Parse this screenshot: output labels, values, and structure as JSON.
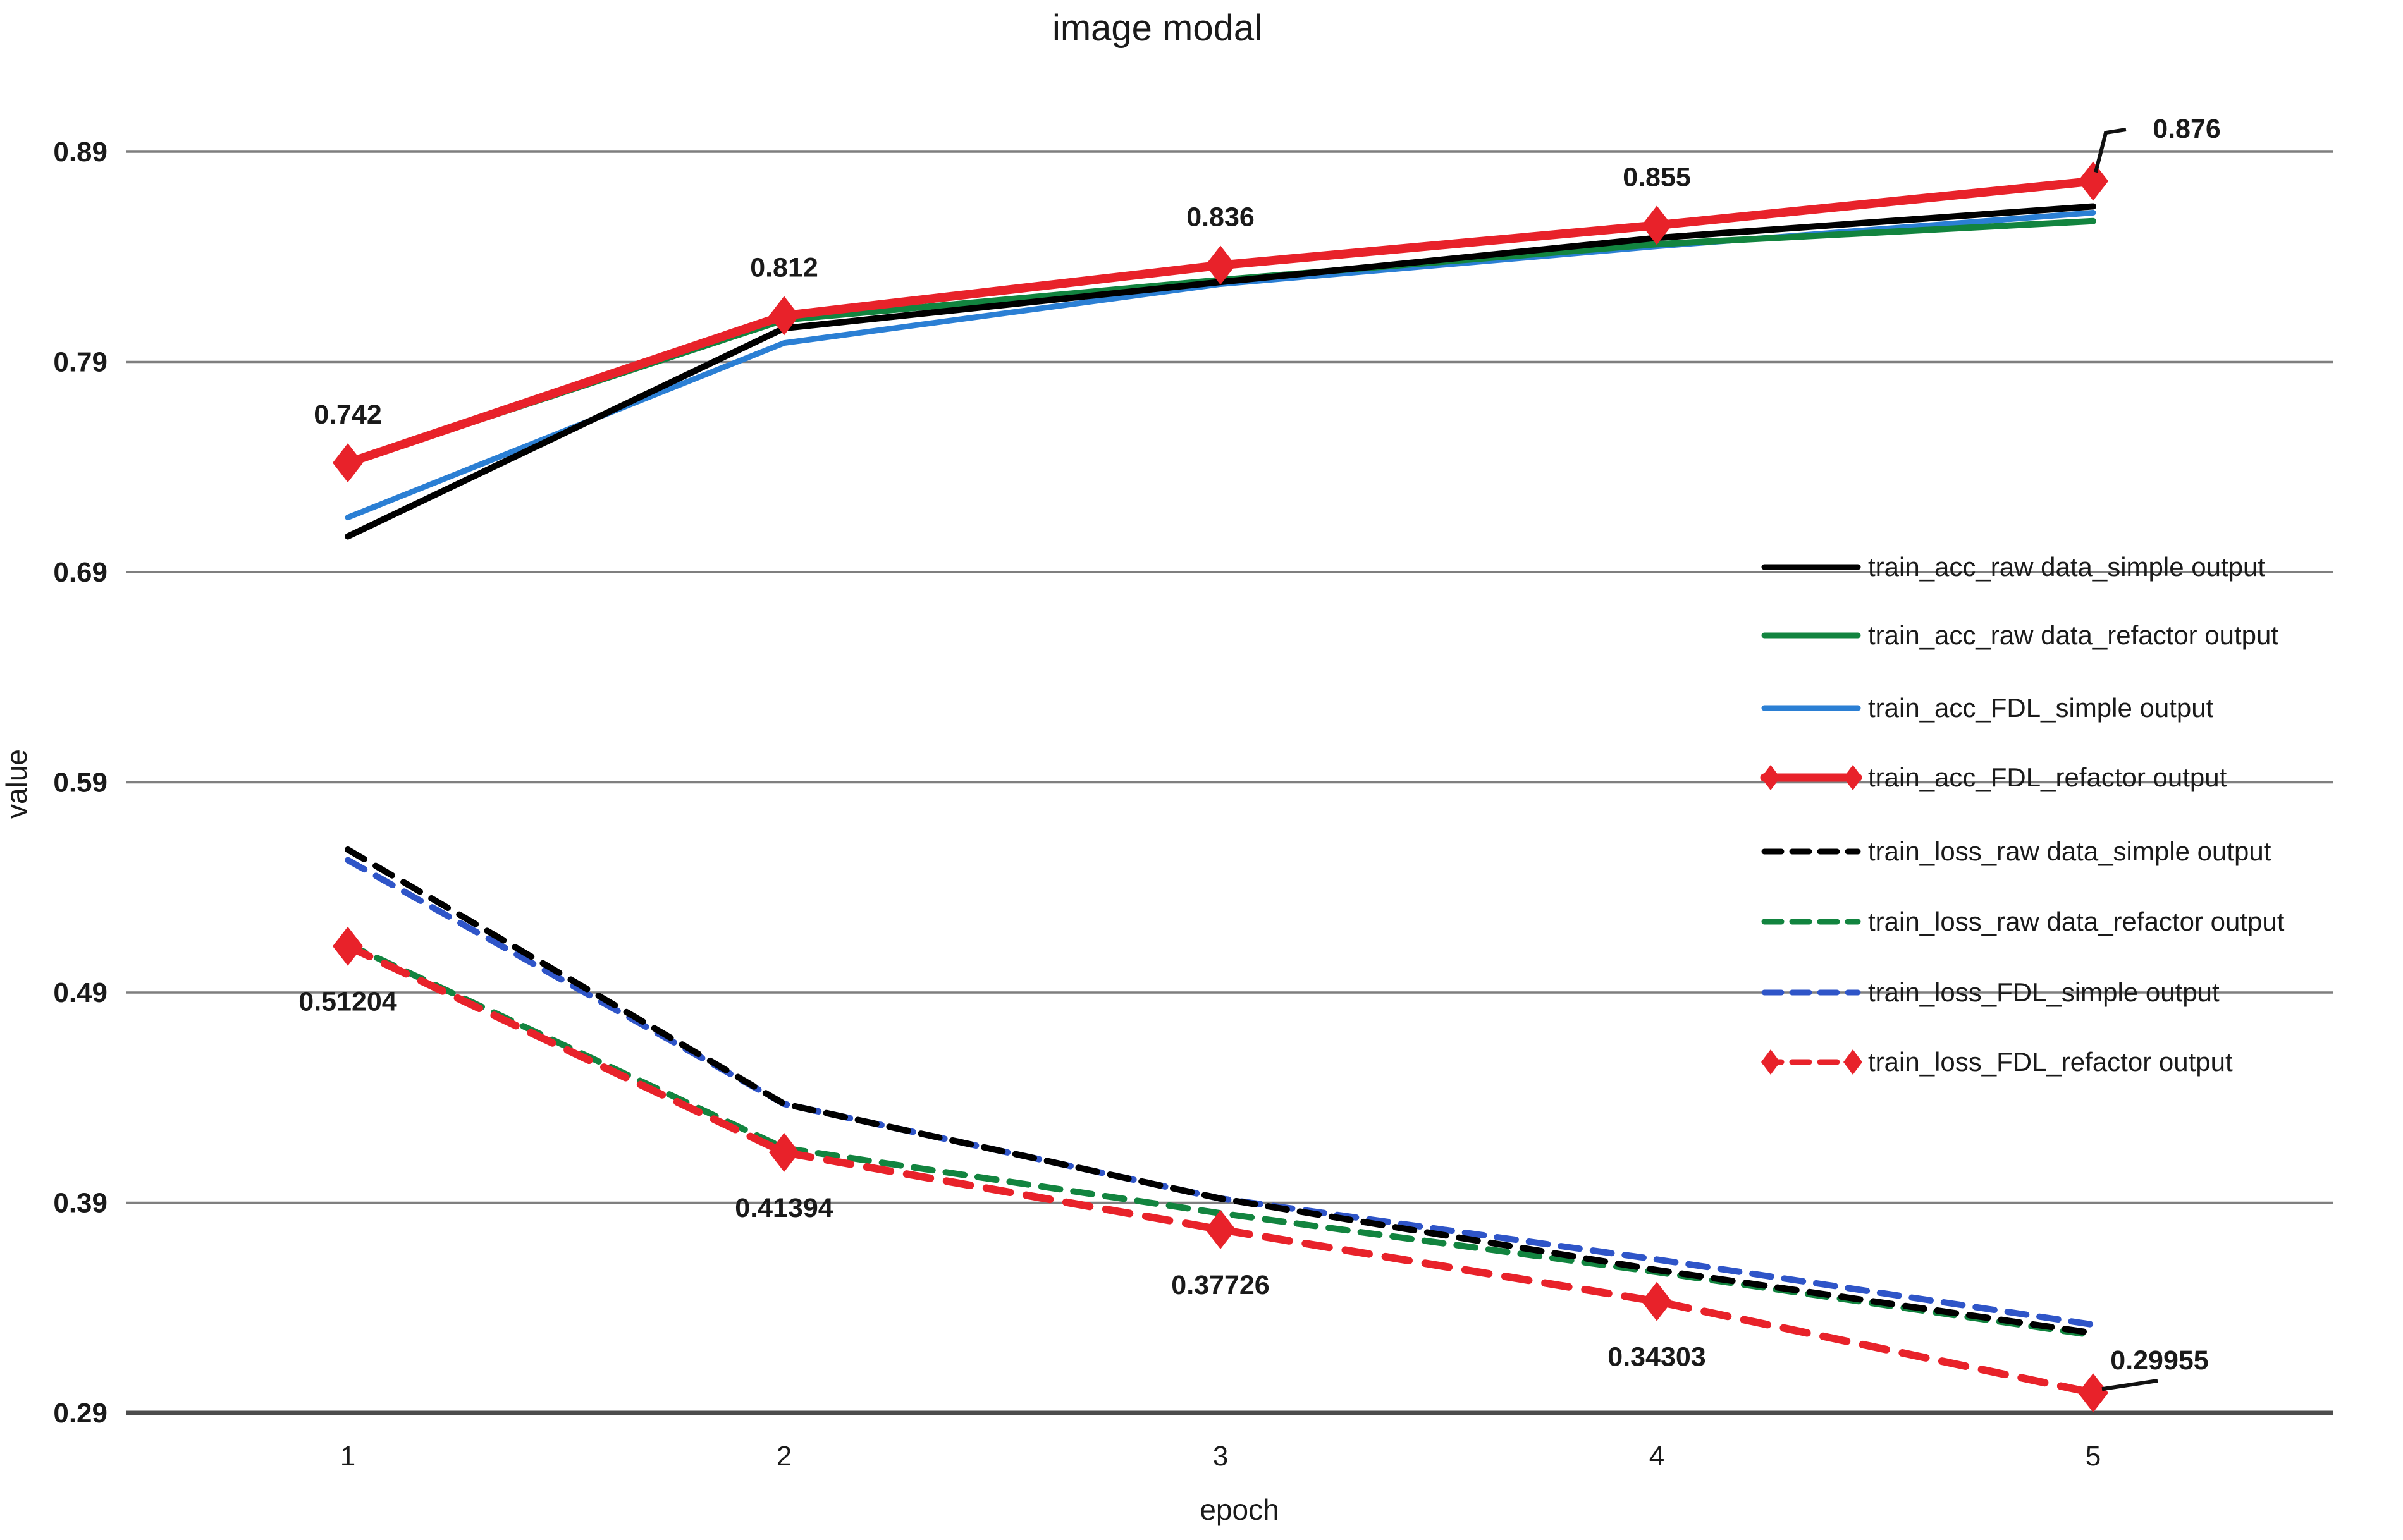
{
  "title": "image modal",
  "accent_colors": {
    "black": "#000000",
    "green": "#12843f",
    "blue_solid": "#2b7fd4",
    "blue_dashed": "#2f55c8",
    "red": "#e8222a",
    "gridline": "#7f7f7f",
    "axis_line": "#4d4d4d",
    "text": "#1a1a1a"
  },
  "chart_data": {
    "type": "line",
    "title": "image modal",
    "xlabel": "epoch",
    "ylabel": "value",
    "x": [
      1,
      2,
      3,
      4,
      5
    ],
    "xtick_labels": [
      "1",
      "2",
      "3",
      "4",
      "5"
    ],
    "yticks": [
      0.89,
      0.79,
      0.69,
      0.59,
      0.49,
      0.39,
      0.29
    ],
    "ytick_labels": [
      "0.89",
      "0.79",
      "0.69",
      "0.59",
      "0.49",
      "0.39",
      "0.29"
    ],
    "ylim": [
      0.29,
      0.89
    ],
    "grid": "horizontal",
    "legend_position": "right-inside",
    "series": [
      {
        "name": "train_acc_raw data_simple output",
        "color": "#000000",
        "style": "solid",
        "marker": "none",
        "values": [
          0.707,
          0.806,
          0.828,
          0.849,
          0.864
        ]
      },
      {
        "name": "train_acc_raw data_refactor output",
        "color": "#12843f",
        "style": "solid",
        "marker": "none",
        "values": [
          0.742,
          0.81,
          0.829,
          0.846,
          0.857
        ]
      },
      {
        "name": "train_acc_FDL_simple output",
        "color": "#2b7fd4",
        "style": "solid",
        "marker": "none",
        "values": [
          0.716,
          0.799,
          0.827,
          0.845,
          0.861
        ]
      },
      {
        "name": "train_acc_FDL_refactor output",
        "color": "#e8222a",
        "style": "solid",
        "marker": "diamond",
        "values": [
          0.742,
          0.812,
          0.836,
          0.855,
          0.876
        ],
        "labels": [
          "0.742",
          "0.812",
          "0.836",
          "0.855",
          "0.876"
        ],
        "label_side": "above"
      },
      {
        "name": "train_loss_raw data_simple output",
        "color": "#000000",
        "style": "dashed",
        "marker": "none",
        "values": [
          0.558,
          0.437,
          0.392,
          0.358,
          0.328
        ]
      },
      {
        "name": "train_loss_raw data_refactor output",
        "color": "#12843f",
        "style": "dashed",
        "marker": "none",
        "values": [
          0.513,
          0.416,
          0.385,
          0.357,
          0.327
        ]
      },
      {
        "name": "train_loss_FDL_simple output",
        "color": "#2f55c8",
        "style": "dashed",
        "marker": "none",
        "values": [
          0.553,
          0.437,
          0.392,
          0.363,
          0.332
        ]
      },
      {
        "name": "train_loss_FDL_refactor output",
        "color": "#e8222a",
        "style": "dashed",
        "marker": "diamond",
        "values": [
          0.51204,
          0.41394,
          0.37726,
          0.34303,
          0.29955
        ],
        "labels": [
          "0.51204",
          "0.41394",
          "0.37726",
          "0.34303",
          "0.29955"
        ],
        "label_side": "below"
      }
    ]
  }
}
